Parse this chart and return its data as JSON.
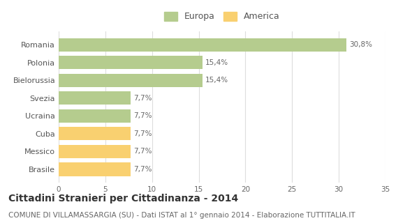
{
  "categories": [
    "Brasile",
    "Messico",
    "Cuba",
    "Ucraina",
    "Svezia",
    "Bielorussia",
    "Polonia",
    "Romania"
  ],
  "values": [
    7.7,
    7.7,
    7.7,
    7.7,
    7.7,
    15.4,
    15.4,
    30.8
  ],
  "labels": [
    "7,7%",
    "7,7%",
    "7,7%",
    "7,7%",
    "7,7%",
    "15,4%",
    "15,4%",
    "30,8%"
  ],
  "colors": [
    "#f9d070",
    "#f9d070",
    "#f9d070",
    "#b5cc8e",
    "#b5cc8e",
    "#b5cc8e",
    "#b5cc8e",
    "#b5cc8e"
  ],
  "legend_labels": [
    "Europa",
    "America"
  ],
  "legend_colors": [
    "#b5cc8e",
    "#f9d070"
  ],
  "xlim": [
    0,
    35
  ],
  "xticks": [
    0,
    5,
    10,
    15,
    20,
    25,
    30,
    35
  ],
  "title": "Cittadini Stranieri per Cittadinanza - 2014",
  "subtitle": "COMUNE DI VILLAMASSARGIA (SU) - Dati ISTAT al 1° gennaio 2014 - Elaborazione TUTTITALIA.IT",
  "title_fontsize": 10,
  "subtitle_fontsize": 7.5,
  "label_fontsize": 7.5,
  "tick_fontsize": 7.5,
  "ytick_fontsize": 8,
  "bg_color": "#ffffff",
  "grid_color": "#dddddd",
  "bar_height": 0.75
}
